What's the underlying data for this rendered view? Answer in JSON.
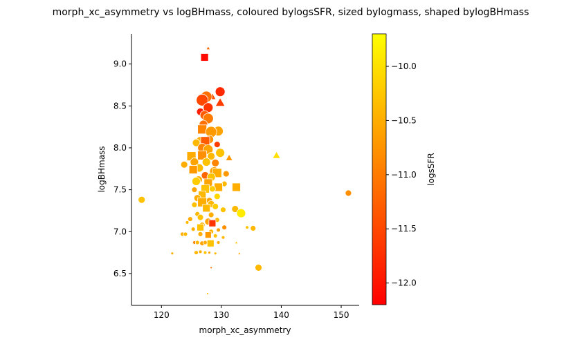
{
  "chart_data": {
    "type": "scatter",
    "title": "morph_xc_asymmetry vs logBHmass, coloured bylogsSFR, sized bylogmass, shaped bylogBHmass",
    "xlabel": "morph_xc_asymmetry",
    "ylabel": "logBHmass",
    "xlim": [
      115,
      153
    ],
    "ylim": [
      6.12,
      9.36
    ],
    "xticks": [
      120,
      130,
      140,
      150
    ],
    "yticks": [
      6.5,
      7.0,
      7.5,
      8.0,
      8.5,
      9.0
    ],
    "grid": false,
    "colorbar": {
      "label": "logsSFR",
      "colormap": "autumn",
      "range": [
        -12.2,
        -9.7
      ],
      "ticks": [
        -12.0,
        -11.5,
        -11.0,
        -10.5,
        -10.0
      ],
      "tick_labels": [
        "−12.0",
        "−11.5",
        "−11.0",
        "−10.5",
        "−10.0"
      ]
    },
    "points": [
      {
        "x": 127.2,
        "y": 9.08,
        "c": -12.1,
        "s": 10,
        "m": "square"
      },
      {
        "x": 127.8,
        "y": 9.19,
        "c": -11.2,
        "s": 4,
        "m": "triangle"
      },
      {
        "x": 129.8,
        "y": 8.67,
        "c": -11.8,
        "s": 13,
        "m": "circle"
      },
      {
        "x": 129.8,
        "y": 8.54,
        "c": -11.6,
        "s": 11,
        "m": "triangle"
      },
      {
        "x": 128.5,
        "y": 8.61,
        "c": -11.4,
        "s": 8,
        "m": "triangle"
      },
      {
        "x": 127.5,
        "y": 8.61,
        "c": -11.1,
        "s": 15,
        "m": "circle"
      },
      {
        "x": 126.8,
        "y": 8.57,
        "c": -11.5,
        "s": 16,
        "m": "circle"
      },
      {
        "x": 127.8,
        "y": 8.48,
        "c": -11.7,
        "s": 13,
        "m": "circle"
      },
      {
        "x": 126.5,
        "y": 8.43,
        "c": -11.9,
        "s": 10,
        "m": "circle"
      },
      {
        "x": 127.2,
        "y": 8.39,
        "c": -11.3,
        "s": 12,
        "m": "circle"
      },
      {
        "x": 127.8,
        "y": 8.35,
        "c": -11.0,
        "s": 14,
        "m": "circle"
      },
      {
        "x": 127.0,
        "y": 8.28,
        "c": -11.1,
        "s": 11,
        "m": "circle"
      },
      {
        "x": 126.8,
        "y": 8.22,
        "c": -10.9,
        "s": 12,
        "m": "square"
      },
      {
        "x": 129.5,
        "y": 8.2,
        "c": -10.6,
        "s": 13,
        "m": "circle"
      },
      {
        "x": 128.3,
        "y": 8.19,
        "c": -10.7,
        "s": 15,
        "m": "circle"
      },
      {
        "x": 128.0,
        "y": 8.1,
        "c": -10.8,
        "s": 11,
        "m": "circle"
      },
      {
        "x": 126.5,
        "y": 8.08,
        "c": -10.5,
        "s": 12,
        "m": "circle"
      },
      {
        "x": 127.3,
        "y": 8.08,
        "c": -11.3,
        "s": 12,
        "m": "square"
      },
      {
        "x": 125.8,
        "y": 8.06,
        "c": -10.4,
        "s": 10,
        "m": "circle"
      },
      {
        "x": 129.3,
        "y": 8.04,
        "c": -11.6,
        "s": 8,
        "m": "circle"
      },
      {
        "x": 126.8,
        "y": 8.0,
        "c": -10.9,
        "s": 12,
        "m": "circle"
      },
      {
        "x": 127.8,
        "y": 7.98,
        "c": -10.6,
        "s": 13,
        "m": "circle"
      },
      {
        "x": 129.8,
        "y": 7.94,
        "c": -10.3,
        "s": 12,
        "m": "circle"
      },
      {
        "x": 125.0,
        "y": 7.9,
        "c": -10.5,
        "s": 12,
        "m": "square"
      },
      {
        "x": 126.8,
        "y": 7.91,
        "c": -10.8,
        "s": 12,
        "m": "square"
      },
      {
        "x": 128.3,
        "y": 7.9,
        "c": -10.4,
        "s": 10,
        "m": "circle"
      },
      {
        "x": 131.3,
        "y": 7.88,
        "c": -10.7,
        "s": 8,
        "m": "triangle"
      },
      {
        "x": 139.2,
        "y": 7.91,
        "c": -10.0,
        "s": 9,
        "m": "triangle"
      },
      {
        "x": 125.5,
        "y": 7.83,
        "c": -10.6,
        "s": 11,
        "m": "circle"
      },
      {
        "x": 127.5,
        "y": 7.83,
        "c": -10.3,
        "s": 11,
        "m": "circle"
      },
      {
        "x": 129.0,
        "y": 7.82,
        "c": -10.9,
        "s": 10,
        "m": "circle"
      },
      {
        "x": 123.8,
        "y": 7.8,
        "c": -10.5,
        "s": 9,
        "m": "circle"
      },
      {
        "x": 126.3,
        "y": 7.76,
        "c": -10.4,
        "s": 11,
        "m": "circle"
      },
      {
        "x": 125.3,
        "y": 7.74,
        "c": -10.7,
        "s": 11,
        "m": "square"
      },
      {
        "x": 128.8,
        "y": 7.72,
        "c": -10.6,
        "s": 12,
        "m": "circle"
      },
      {
        "x": 129.3,
        "y": 7.7,
        "c": -10.5,
        "s": 12,
        "m": "square"
      },
      {
        "x": 130.8,
        "y": 7.69,
        "c": -10.7,
        "s": 8,
        "m": "circle"
      },
      {
        "x": 127.3,
        "y": 7.67,
        "c": -11.2,
        "s": 10,
        "m": "circle"
      },
      {
        "x": 128.3,
        "y": 7.65,
        "c": -10.3,
        "s": 11,
        "m": "circle"
      },
      {
        "x": 126.2,
        "y": 7.62,
        "c": -10.5,
        "s": 10,
        "m": "circle"
      },
      {
        "x": 125.8,
        "y": 7.6,
        "c": -10.2,
        "s": 11,
        "m": "circle"
      },
      {
        "x": 127.8,
        "y": 7.58,
        "c": -10.6,
        "s": 11,
        "m": "square"
      },
      {
        "x": 130.5,
        "y": 7.57,
        "c": -10.4,
        "s": 7,
        "m": "circle"
      },
      {
        "x": 129.5,
        "y": 7.53,
        "c": -10.5,
        "s": 11,
        "m": "square"
      },
      {
        "x": 132.5,
        "y": 7.53,
        "c": -10.5,
        "s": 11,
        "m": "square"
      },
      {
        "x": 127.3,
        "y": 7.51,
        "c": -10.3,
        "s": 11,
        "m": "square"
      },
      {
        "x": 128.5,
        "y": 7.51,
        "c": -10.2,
        "s": 8,
        "m": "circle"
      },
      {
        "x": 125.5,
        "y": 7.5,
        "c": -10.6,
        "s": 7,
        "m": "circle"
      },
      {
        "x": 151.2,
        "y": 7.46,
        "c": -10.8,
        "s": 8,
        "m": "circle"
      },
      {
        "x": 126.8,
        "y": 7.44,
        "c": -10.4,
        "s": 10,
        "m": "square"
      },
      {
        "x": 129.3,
        "y": 7.42,
        "c": -10.1,
        "s": 8,
        "m": "circle"
      },
      {
        "x": 126.0,
        "y": 7.4,
        "c": -10.5,
        "s": 9,
        "m": "circle"
      },
      {
        "x": 116.7,
        "y": 7.38,
        "c": -10.3,
        "s": 9,
        "m": "circle"
      },
      {
        "x": 128.0,
        "y": 7.37,
        "c": -10.6,
        "s": 8,
        "m": "circle"
      },
      {
        "x": 126.8,
        "y": 7.35,
        "c": -10.5,
        "s": 12,
        "m": "square"
      },
      {
        "x": 128.3,
        "y": 7.33,
        "c": -10.4,
        "s": 9,
        "m": "circle"
      },
      {
        "x": 125.5,
        "y": 7.32,
        "c": -10.3,
        "s": 7,
        "m": "circle"
      },
      {
        "x": 129.0,
        "y": 7.3,
        "c": -10.2,
        "s": 8,
        "m": "circle"
      },
      {
        "x": 127.5,
        "y": 7.28,
        "c": -10.4,
        "s": 10,
        "m": "square"
      },
      {
        "x": 132.3,
        "y": 7.27,
        "c": -10.4,
        "s": 9,
        "m": "circle"
      },
      {
        "x": 130.3,
        "y": 7.26,
        "c": -10.3,
        "s": 7,
        "m": "circle"
      },
      {
        "x": 133.3,
        "y": 7.22,
        "c": -9.9,
        "s": 12,
        "m": "circle"
      },
      {
        "x": 126.0,
        "y": 7.21,
        "c": -10.4,
        "s": 6,
        "m": "circle"
      },
      {
        "x": 128.3,
        "y": 7.2,
        "c": -10.5,
        "s": 7,
        "m": "circle"
      },
      {
        "x": 126.5,
        "y": 7.17,
        "c": -10.3,
        "s": 8,
        "m": "circle"
      },
      {
        "x": 124.8,
        "y": 7.15,
        "c": -10.5,
        "s": 6,
        "m": "circle"
      },
      {
        "x": 129.3,
        "y": 7.14,
        "c": -10.4,
        "s": 6,
        "m": "circle"
      },
      {
        "x": 127.8,
        "y": 7.12,
        "c": -10.6,
        "s": 9,
        "m": "circle"
      },
      {
        "x": 124.3,
        "y": 7.11,
        "c": -10.4,
        "s": 4,
        "m": "circle"
      },
      {
        "x": 128.5,
        "y": 7.1,
        "c": -11.7,
        "s": 9,
        "m": "square"
      },
      {
        "x": 126.8,
        "y": 7.08,
        "c": -10.5,
        "s": 7,
        "m": "circle"
      },
      {
        "x": 126.5,
        "y": 7.05,
        "c": -10.3,
        "s": 9,
        "m": "square"
      },
      {
        "x": 130.5,
        "y": 7.05,
        "c": -10.8,
        "s": 6,
        "m": "circle"
      },
      {
        "x": 135.3,
        "y": 7.04,
        "c": -10.4,
        "s": 7,
        "m": "circle"
      },
      {
        "x": 125.3,
        "y": 7.03,
        "c": -10.5,
        "s": 5,
        "m": "circle"
      },
      {
        "x": 129.5,
        "y": 7.02,
        "c": -10.6,
        "s": 5,
        "m": "circle"
      },
      {
        "x": 128.3,
        "y": 7.0,
        "c": -10.4,
        "s": 6,
        "m": "circle"
      },
      {
        "x": 134.3,
        "y": 7.05,
        "c": -10.3,
        "s": 4,
        "m": "circle"
      },
      {
        "x": 123.5,
        "y": 6.97,
        "c": -10.5,
        "s": 5,
        "m": "circle"
      },
      {
        "x": 124.0,
        "y": 6.97,
        "c": -10.4,
        "s": 5,
        "m": "circle"
      },
      {
        "x": 126.5,
        "y": 6.97,
        "c": -10.5,
        "s": 6,
        "m": "circle"
      },
      {
        "x": 127.8,
        "y": 6.96,
        "c": -10.7,
        "s": 8,
        "m": "square"
      },
      {
        "x": 129.0,
        "y": 6.95,
        "c": -10.3,
        "s": 5,
        "m": "circle"
      },
      {
        "x": 130.3,
        "y": 6.93,
        "c": -10.4,
        "s": 4,
        "m": "circle"
      },
      {
        "x": 125.5,
        "y": 6.87,
        "c": -10.9,
        "s": 4,
        "m": "circle"
      },
      {
        "x": 126.0,
        "y": 6.87,
        "c": -10.4,
        "s": 5,
        "m": "circle"
      },
      {
        "x": 126.8,
        "y": 6.86,
        "c": -10.6,
        "s": 6,
        "m": "circle"
      },
      {
        "x": 127.3,
        "y": 6.87,
        "c": -10.5,
        "s": 5,
        "m": "circle"
      },
      {
        "x": 128.2,
        "y": 6.86,
        "c": -10.3,
        "s": 9,
        "m": "square"
      },
      {
        "x": 129.5,
        "y": 6.87,
        "c": -10.5,
        "s": 4,
        "m": "circle"
      },
      {
        "x": 132.5,
        "y": 6.87,
        "c": -10.3,
        "s": 3,
        "m": "triangle"
      },
      {
        "x": 125.8,
        "y": 6.75,
        "c": -10.4,
        "s": 5,
        "m": "circle"
      },
      {
        "x": 126.5,
        "y": 6.76,
        "c": -10.5,
        "s": 4,
        "m": "circle"
      },
      {
        "x": 127.3,
        "y": 6.75,
        "c": -10.3,
        "s": 4,
        "m": "circle"
      },
      {
        "x": 128.0,
        "y": 6.75,
        "c": -10.6,
        "s": 3,
        "m": "circle"
      },
      {
        "x": 129.0,
        "y": 6.74,
        "c": -10.4,
        "s": 3,
        "m": "circle"
      },
      {
        "x": 121.8,
        "y": 6.74,
        "c": -10.5,
        "s": 3,
        "m": "circle"
      },
      {
        "x": 133.0,
        "y": 6.74,
        "c": -10.5,
        "s": 3,
        "m": "triangle"
      },
      {
        "x": 128.3,
        "y": 6.57,
        "c": -11.1,
        "s": 2,
        "m": "circle"
      },
      {
        "x": 136.2,
        "y": 6.57,
        "c": -10.4,
        "s": 9,
        "m": "circle"
      },
      {
        "x": 127.7,
        "y": 6.26,
        "c": -10.3,
        "s": 2,
        "m": "circle"
      }
    ]
  }
}
